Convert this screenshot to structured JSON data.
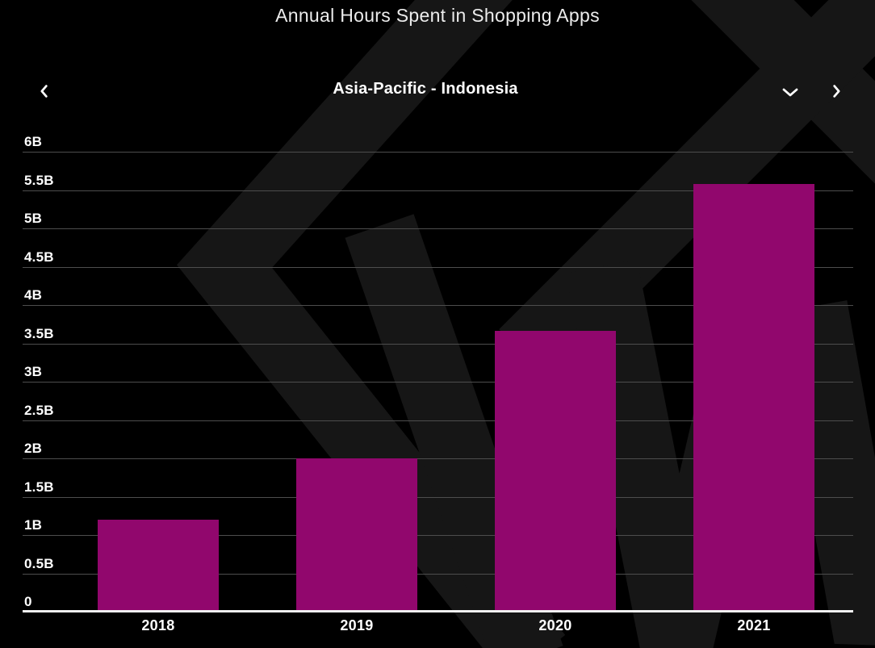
{
  "title": "Annual Hours Spent in Shopping Apps",
  "region_nav": {
    "label": "Asia-Pacific - Indonesia",
    "prev_icon": "chevron-left",
    "dropdown_icon": "chevron-down",
    "next_icon": "chevron-right"
  },
  "colors": {
    "background": "#000000",
    "watermark": "#161616",
    "bar": "#91076D",
    "gridline": "#4d4d4d",
    "axis": "#f0f0f0",
    "text": "#ffffff"
  },
  "chart_data": {
    "type": "bar",
    "title": "Annual Hours Spent in Shopping Apps",
    "subtitle": "Asia-Pacific - Indonesia",
    "categories": [
      "2018",
      "2019",
      "2020",
      "2021"
    ],
    "values": [
      1.2,
      2.0,
      3.66,
      5.58
    ],
    "value_suffix": "B",
    "xlabel": "",
    "ylabel": "",
    "ylim": [
      0,
      6
    ],
    "yticks": [
      0,
      0.5,
      1,
      1.5,
      2,
      2.5,
      3,
      3.5,
      4,
      4.5,
      5,
      5.5,
      6
    ],
    "ytick_labels": [
      "0",
      "0.5B",
      "1B",
      "1.5B",
      "2B",
      "2.5B",
      "3B",
      "3.5B",
      "4B",
      "4.5B",
      "5B",
      "5.5B",
      "6B"
    ],
    "grid": true,
    "legend": false
  }
}
